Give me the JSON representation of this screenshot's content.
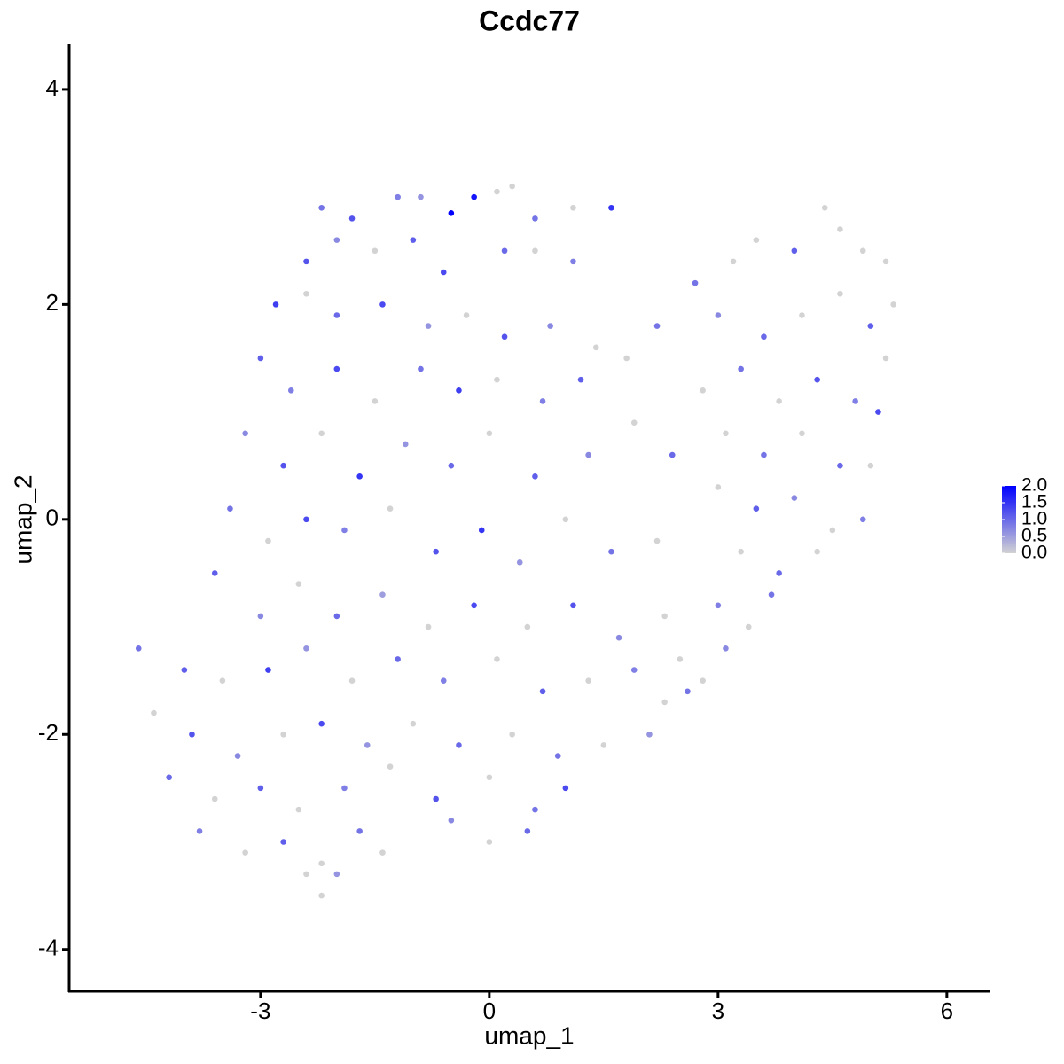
{
  "chart_data": {
    "type": "scatter",
    "title": "Ccdc77",
    "x_label": "umap_1",
    "y_label": "umap_2",
    "xlim": [
      -5.51,
      6.56
    ],
    "ylim": [
      -4.39,
      4.42
    ],
    "xticks": [
      -3,
      0,
      3,
      6
    ],
    "yticks": [
      -4,
      -2,
      0,
      2,
      4
    ],
    "colorscale": [
      "#d3d3d3",
      "#0000ff"
    ],
    "colorlim": [
      0,
      2
    ],
    "colorticks": [
      {
        "value": 0,
        "label": "0.0"
      },
      0.5,
      {
        "value": 1,
        "label": "1.0"
      },
      1.5,
      {
        "value": 2,
        "label": "2.0"
      }
    ],
    "x": [
      -2.2,
      -1.8,
      -1.2,
      -0.9,
      -0.5,
      -0.2,
      0.1,
      0.3,
      0.6,
      1.1,
      1.6,
      -2.4,
      -2.0,
      -1.5,
      -1.0,
      -0.6,
      0.2,
      0.6,
      1.1,
      -2.8,
      -2.4,
      -2.0,
      -1.4,
      -0.8,
      -0.3,
      0.2,
      0.8,
      1.4,
      -3.0,
      -2.6,
      -2.0,
      -1.5,
      -0.9,
      -0.4,
      0.1,
      0.7,
      1.2,
      1.8,
      2.2,
      -3.2,
      -2.7,
      -2.2,
      -1.7,
      -1.1,
      -0.5,
      0.0,
      0.6,
      1.3,
      1.9,
      2.4,
      -3.4,
      -2.9,
      -2.4,
      -1.9,
      -1.3,
      -0.7,
      -0.1,
      0.4,
      1.0,
      1.6,
      2.2,
      -3.6,
      -3.0,
      -2.5,
      -2.0,
      -1.4,
      -0.8,
      -0.2,
      0.5,
      1.1,
      1.7,
      2.3,
      -4.6,
      -4.0,
      -3.5,
      -2.9,
      -2.4,
      -1.8,
      -1.2,
      -0.6,
      0.1,
      0.7,
      1.3,
      1.9,
      2.5,
      -4.4,
      -3.9,
      -3.3,
      -2.7,
      -2.2,
      -1.6,
      -1.0,
      -0.4,
      0.3,
      0.9,
      1.5,
      2.1,
      -4.2,
      -3.6,
      -3.0,
      -2.5,
      -1.9,
      -1.3,
      -0.7,
      0.0,
      0.6,
      1.0,
      -3.8,
      -3.2,
      -2.7,
      -2.2,
      -1.7,
      -1.4,
      -0.5,
      0.0,
      0.5,
      -2.4,
      -2.2,
      -2.0,
      2.7,
      3.2,
      3.5,
      4.0,
      4.4,
      4.6,
      4.9,
      5.2,
      5.3,
      3.0,
      3.6,
      4.1,
      4.6,
      5.0,
      5.2,
      2.8,
      3.3,
      3.8,
      4.3,
      4.8,
      5.1,
      3.1,
      3.6,
      4.1,
      4.6,
      5.0,
      3.0,
      3.5,
      4.0,
      4.5,
      4.9,
      3.3,
      3.8,
      4.3,
      3.0,
      3.4,
      3.7,
      2.8,
      3.1,
      2.6,
      2.3
    ],
    "y": [
      2.9,
      2.8,
      3.0,
      3.0,
      2.85,
      3.0,
      3.05,
      3.1,
      2.8,
      2.9,
      2.9,
      2.4,
      2.6,
      2.5,
      2.6,
      2.3,
      2.5,
      2.5,
      2.4,
      2.0,
      2.1,
      1.9,
      2.0,
      1.8,
      1.9,
      1.7,
      1.8,
      1.6,
      1.5,
      1.2,
      1.4,
      1.1,
      1.4,
      1.2,
      1.3,
      1.1,
      1.3,
      1.5,
      1.8,
      0.8,
      0.5,
      0.8,
      0.4,
      0.7,
      0.5,
      0.8,
      0.4,
      0.6,
      0.9,
      0.6,
      0.1,
      -0.2,
      0.0,
      -0.1,
      0.1,
      -0.3,
      -0.1,
      -0.4,
      0.0,
      -0.3,
      -0.2,
      -0.5,
      -0.9,
      -0.6,
      -0.9,
      -0.7,
      -1.0,
      -0.8,
      -1.0,
      -0.8,
      -1.1,
      -0.9,
      -1.2,
      -1.4,
      -1.5,
      -1.4,
      -1.2,
      -1.5,
      -1.3,
      -1.5,
      -1.3,
      -1.6,
      -1.5,
      -1.4,
      -1.3,
      -1.8,
      -2.0,
      -2.2,
      -2.0,
      -1.9,
      -2.1,
      -1.9,
      -2.1,
      -2.0,
      -2.2,
      -2.1,
      -2.0,
      -2.4,
      -2.6,
      -2.5,
      -2.7,
      -2.5,
      -2.3,
      -2.6,
      -2.4,
      -2.7,
      -2.5,
      -2.9,
      -3.1,
      -3.0,
      -3.2,
      -2.9,
      -3.1,
      -2.8,
      -3.0,
      -2.9,
      -3.3,
      -3.5,
      -3.3,
      2.2,
      2.4,
      2.6,
      2.5,
      2.9,
      2.7,
      2.5,
      2.4,
      2.0,
      1.9,
      1.7,
      1.9,
      2.1,
      1.8,
      1.5,
      1.2,
      1.4,
      1.1,
      1.3,
      1.1,
      1.0,
      0.8,
      0.6,
      0.8,
      0.5,
      0.5,
      0.3,
      0.1,
      0.2,
      -0.1,
      0.0,
      -0.3,
      -0.5,
      -0.3,
      -0.8,
      -1.0,
      -0.7,
      -1.5,
      -1.2,
      -1.6,
      -1.7
    ],
    "values": [
      0.9,
      1.2,
      0.8,
      0.6,
      2.0,
      1.8,
      0,
      0,
      0.9,
      0,
      1.5,
      1.2,
      0.7,
      0,
      1.1,
      1.3,
      1.0,
      0,
      0.8,
      1.4,
      0,
      1.0,
      1.3,
      0.6,
      0,
      1.2,
      0.7,
      0,
      1.1,
      0.8,
      1.3,
      0,
      0.9,
      1.4,
      0,
      0.8,
      1.1,
      0,
      0.9,
      0.7,
      1.2,
      0,
      1.5,
      0.6,
      1.0,
      0,
      1.1,
      0.7,
      0,
      1.0,
      0.9,
      0,
      1.3,
      0.8,
      0,
      1.2,
      1.5,
      0.6,
      0,
      0.9,
      0,
      1.1,
      0.7,
      0,
      1.0,
      0.5,
      0,
      1.3,
      0,
      1.2,
      0.7,
      0,
      0.9,
      1.1,
      0,
      1.4,
      0.6,
      0,
      1.0,
      0.8,
      0,
      1.1,
      0,
      0.8,
      0,
      0,
      1.2,
      0.7,
      0,
      1.3,
      0.6,
      0,
      1.0,
      0,
      0.9,
      0,
      0.6,
      1.0,
      0,
      1.1,
      0,
      0.8,
      0,
      1.2,
      0,
      0.9,
      1.3,
      0.8,
      0,
      1.1,
      0,
      0.9,
      0,
      0.7,
      0,
      1.0,
      0,
      0,
      0.6,
      0.9,
      0,
      0,
      1.1,
      0,
      0,
      0,
      0,
      0,
      0.7,
      1.0,
      0,
      0,
      1.1,
      0,
      0,
      0.9,
      0,
      1.2,
      0.8,
      1.3,
      0,
      0.9,
      0,
      1.0,
      0,
      0,
      1.1,
      0.7,
      0,
      0.8,
      0,
      1.0,
      0,
      0.8,
      0,
      0.9,
      0,
      0.7,
      0.9,
      0
    ]
  }
}
